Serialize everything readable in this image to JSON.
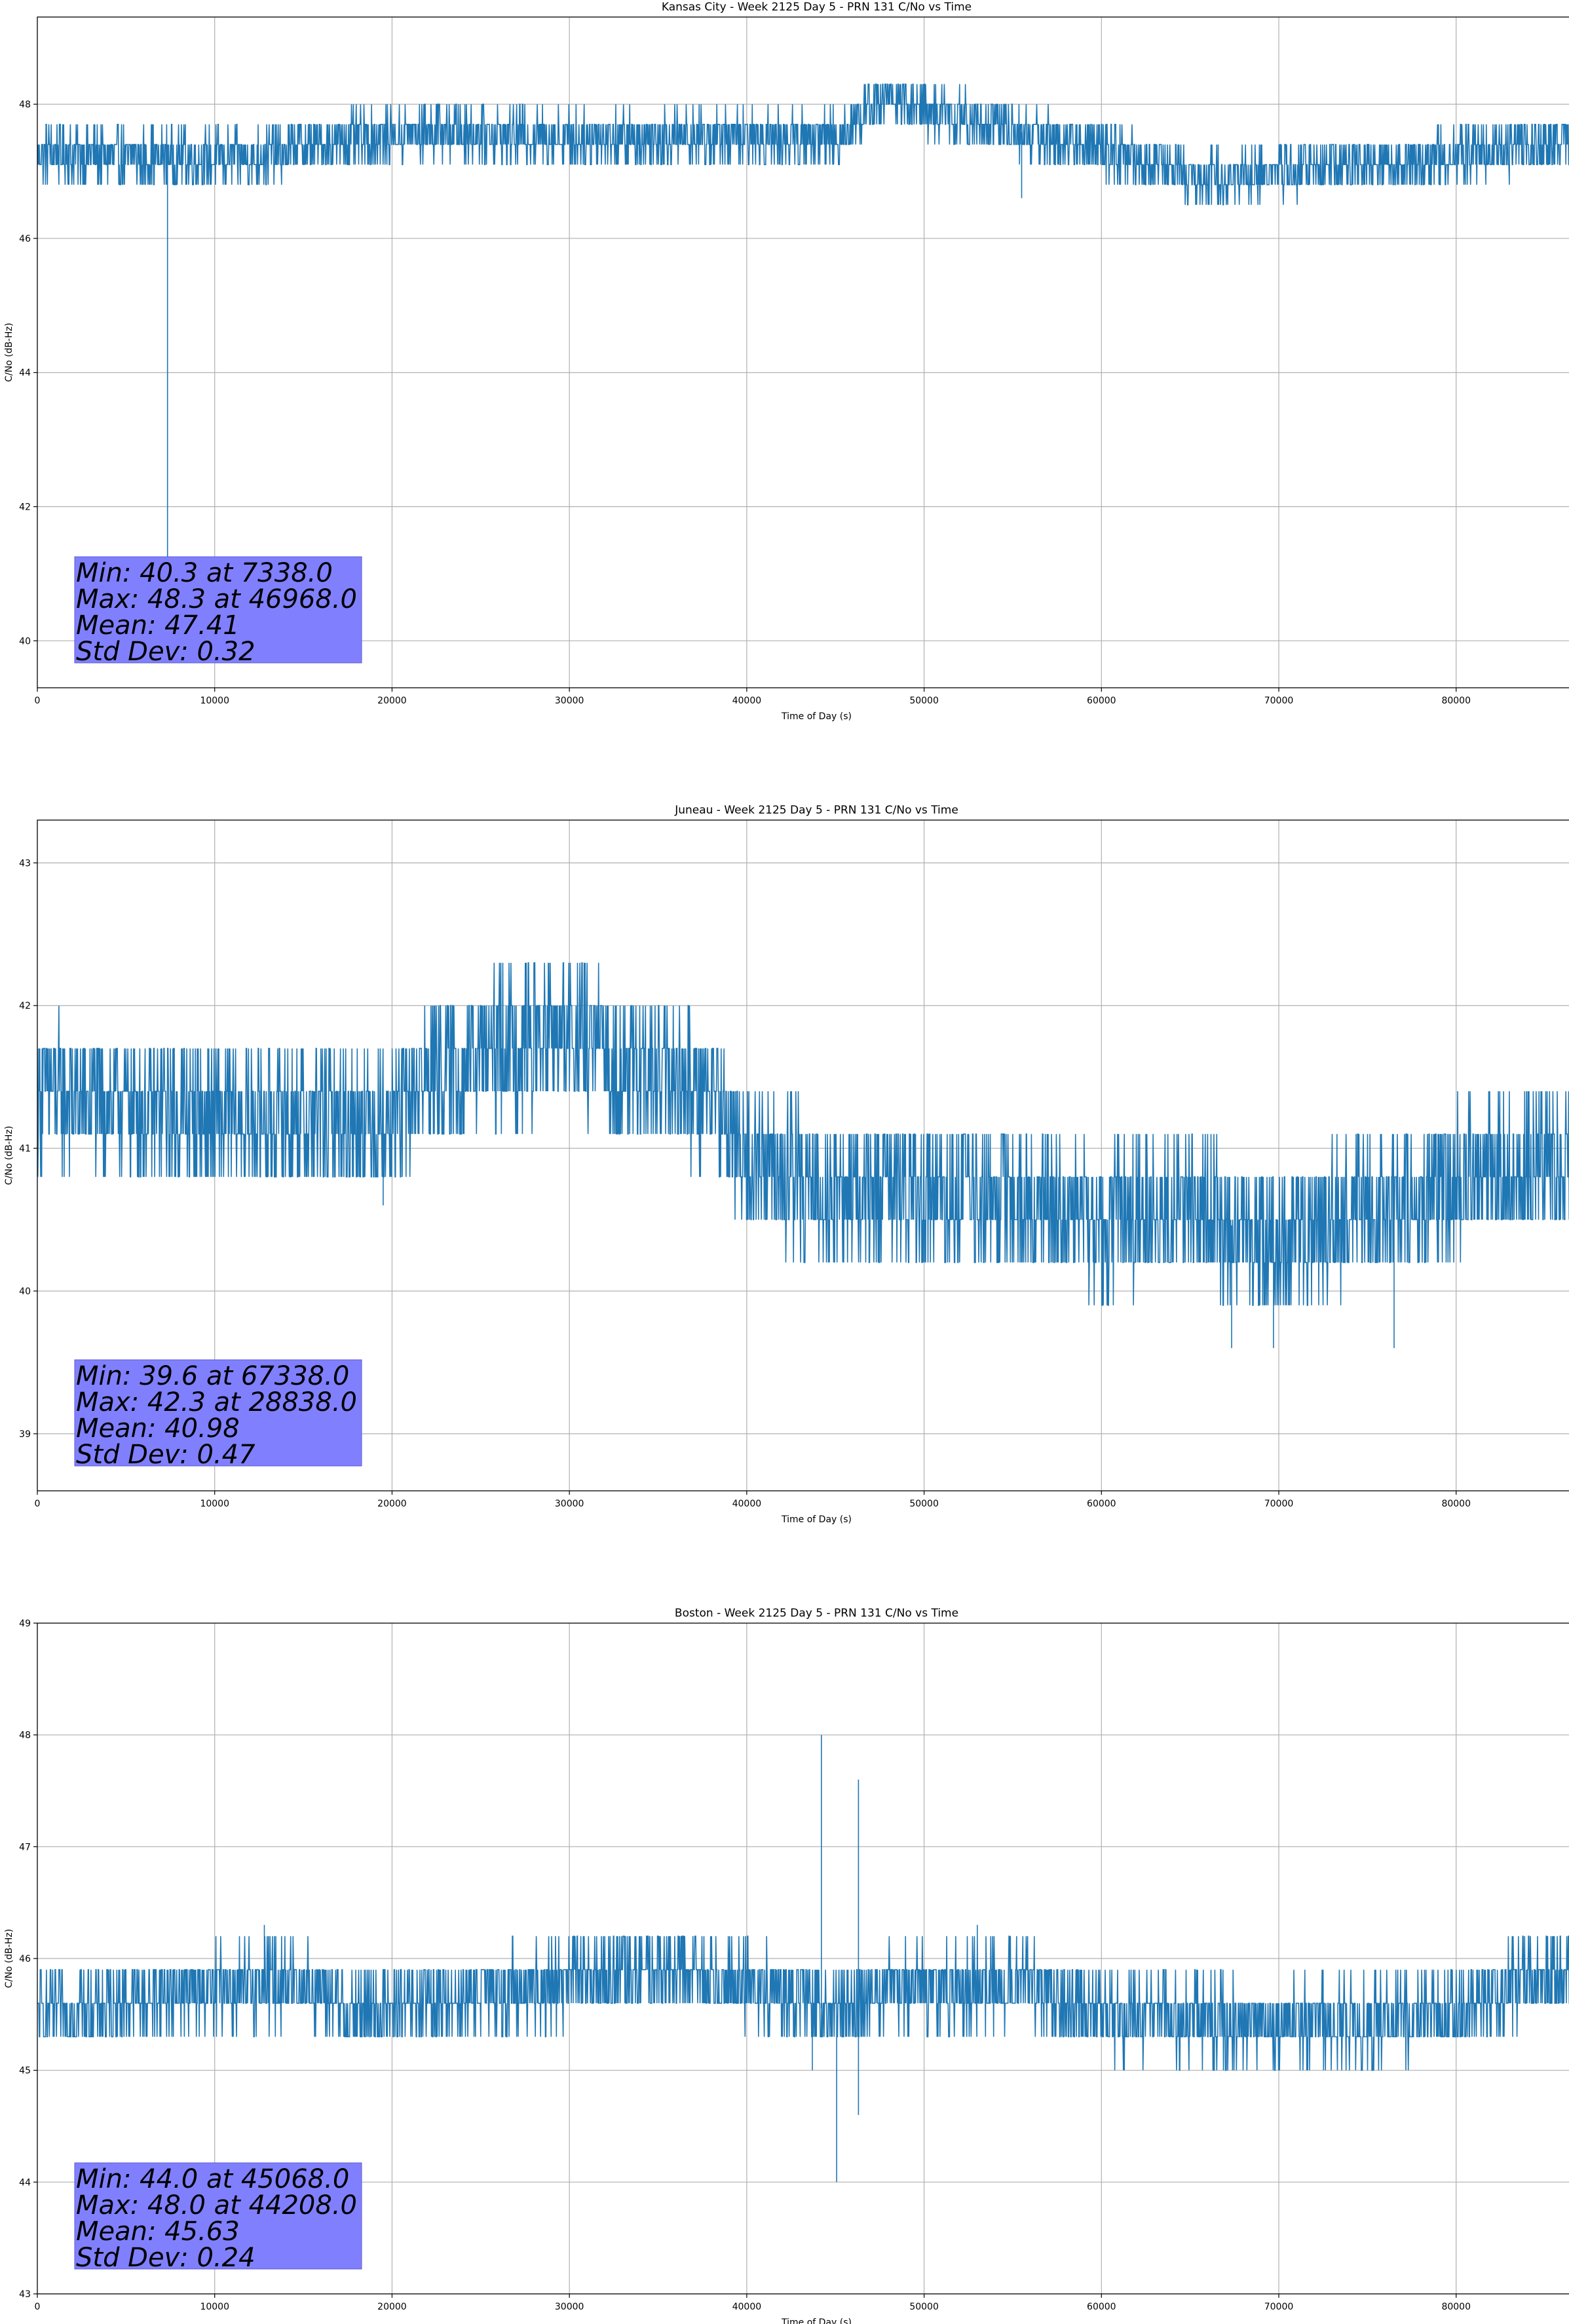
{
  "chart_data": [
    {
      "type": "line",
      "title": "Kansas City - Week 2125 Day 5 - PRN 131 C/No vs Time",
      "xlabel": "Time of Day (s)",
      "ylabel": "C/No (dB-Hz)",
      "xlim": [
        0,
        86400
      ],
      "ylim": [
        39.3,
        49.3
      ],
      "xticks": [
        "0",
        "10000",
        "20000",
        "30000",
        "40000",
        "50000",
        "60000",
        "70000",
        "80000"
      ],
      "yticks": [
        40,
        42,
        44,
        46,
        48
      ],
      "grid": true,
      "series_color": "#1f77b4",
      "profile": [
        [
          0,
          47.3
        ],
        [
          5000,
          47.2
        ],
        [
          12000,
          47.2
        ],
        [
          16000,
          47.4
        ],
        [
          22000,
          47.6
        ],
        [
          30000,
          47.5
        ],
        [
          40000,
          47.5
        ],
        [
          45000,
          47.5
        ],
        [
          47500,
          48.1
        ],
        [
          52000,
          47.8
        ],
        [
          57000,
          47.5
        ],
        [
          62000,
          47.2
        ],
        [
          66000,
          46.9
        ],
        [
          70000,
          47.0
        ],
        [
          75000,
          47.1
        ],
        [
          82000,
          47.3
        ],
        [
          86400,
          47.4
        ]
      ],
      "noise": 0.4,
      "spikes": [
        {
          "x": 7338,
          "y": 40.3
        },
        {
          "x": 55500,
          "y": 46.6
        }
      ],
      "stats": {
        "min": "Min: 40.3 at 7338.0",
        "max": "Max: 48.3 at 46968.0",
        "mean": "Mean: 47.41",
        "std": "Std Dev: 0.32"
      }
    },
    {
      "type": "line",
      "title": "Juneau - Week 2125 Day 5 - PRN 131 C/No vs Time",
      "xlabel": "Time of Day (s)",
      "ylabel": "C/No (dB-Hz)",
      "xlim": [
        0,
        86400
      ],
      "ylim": [
        38.6,
        43.3
      ],
      "xticks": [
        "0",
        "10000",
        "20000",
        "30000",
        "40000",
        "50000",
        "60000",
        "70000",
        "80000"
      ],
      "yticks": [
        39,
        40,
        41,
        42,
        43
      ],
      "grid": true,
      "series_color": "#1f77b4",
      "profile": [
        [
          0,
          41.4
        ],
        [
          5000,
          41.3
        ],
        [
          10000,
          41.2
        ],
        [
          15000,
          41.2
        ],
        [
          20000,
          41.2
        ],
        [
          22000,
          41.5
        ],
        [
          26000,
          41.7
        ],
        [
          30000,
          41.8
        ],
        [
          34000,
          41.5
        ],
        [
          38000,
          41.4
        ],
        [
          40000,
          40.9
        ],
        [
          45000,
          40.7
        ],
        [
          50000,
          40.7
        ],
        [
          55000,
          40.6
        ],
        [
          60000,
          40.5
        ],
        [
          65000,
          40.6
        ],
        [
          70000,
          40.3
        ],
        [
          72000,
          40.5
        ],
        [
          76000,
          40.6
        ],
        [
          80000,
          40.8
        ],
        [
          86400,
          40.9
        ]
      ],
      "noise": 0.5,
      "spikes": [
        {
          "x": 28838,
          "y": 42.3
        },
        {
          "x": 67338,
          "y": 39.6
        },
        {
          "x": 69700,
          "y": 39.6
        },
        {
          "x": 76500,
          "y": 39.6
        },
        {
          "x": 19500,
          "y": 40.6
        }
      ],
      "stats": {
        "min": "Min: 39.6 at 67338.0",
        "max": "Max: 42.3 at 28838.0",
        "mean": "Mean: 40.98",
        "std": "Std Dev: 0.47"
      }
    },
    {
      "type": "line",
      "title": "Boston - Week 2125 Day 5 - PRN 131 C/No vs Time",
      "xlabel": "Time of Day (s)",
      "ylabel": "C/No (dB-Hz)",
      "xlim": [
        0,
        86400
      ],
      "ylim": [
        43.0,
        49.0
      ],
      "xticks": [
        "0",
        "10000",
        "20000",
        "30000",
        "40000",
        "50000",
        "60000",
        "70000",
        "80000"
      ],
      "yticks": [
        43,
        44,
        45,
        46,
        47,
        48,
        49
      ],
      "grid": true,
      "series_color": "#1f77b4",
      "profile": [
        [
          0,
          45.5
        ],
        [
          8000,
          45.7
        ],
        [
          15000,
          45.8
        ],
        [
          18000,
          45.5
        ],
        [
          22000,
          45.6
        ],
        [
          30000,
          45.8
        ],
        [
          36000,
          45.9
        ],
        [
          42000,
          45.7
        ],
        [
          45000,
          45.5
        ],
        [
          47000,
          45.7
        ],
        [
          55000,
          45.8
        ],
        [
          60000,
          45.5
        ],
        [
          70000,
          45.4
        ],
        [
          80000,
          45.5
        ],
        [
          84000,
          45.8
        ],
        [
          86400,
          45.9
        ]
      ],
      "noise": 0.35,
      "spikes": [
        {
          "x": 44208,
          "y": 48.0
        },
        {
          "x": 45068,
          "y": 44.0
        },
        {
          "x": 46300,
          "y": 47.6
        },
        {
          "x": 46300,
          "y": 44.6
        },
        {
          "x": 12800,
          "y": 46.3
        },
        {
          "x": 53000,
          "y": 46.3
        },
        {
          "x": 43700,
          "y": 45.0
        }
      ],
      "stats": {
        "min": "Min: 44.0 at 45068.0",
        "max": "Max: 48.0 at 44208.0",
        "mean": "Mean: 45.63",
        "std": "Std Dev: 0.24"
      }
    }
  ]
}
